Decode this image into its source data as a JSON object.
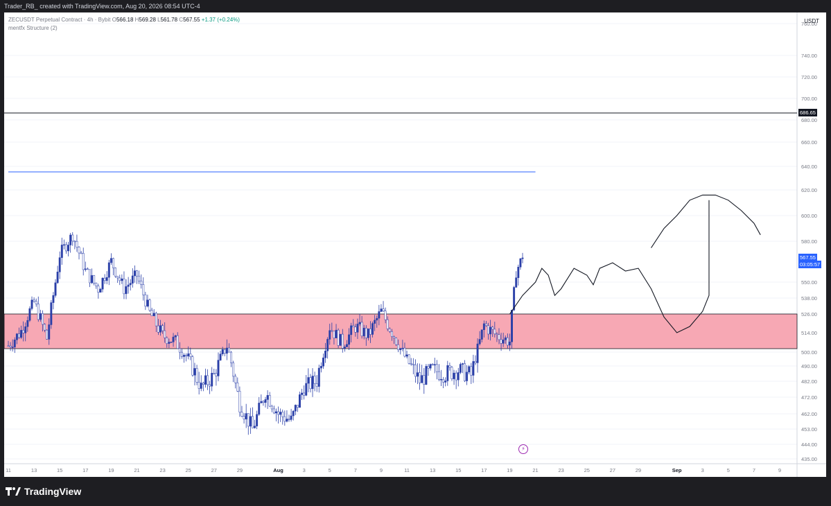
{
  "header": {
    "caption": "Trader_RB_ created with TradingView.com, Aug 20, 2026 08:54 UTC-4"
  },
  "legend": {
    "symbol": "ZECUSDT Perpetual Contract · 4h · Bybit",
    "o_label": "O",
    "o": "566.18",
    "h_label": "H",
    "h": "569.28",
    "l_label": "L",
    "l": "561.78",
    "c_label": "C",
    "c": "567.55",
    "change": "+1.37 (+0.24%)",
    "indicator": "mentfx Structure (2)"
  },
  "price_axis": {
    "unit": "USDT",
    "ticks": [
      "760.00",
      "740.00",
      "720.00",
      "700.00",
      "680.00",
      "660.00",
      "640.00",
      "620.00",
      "600.00",
      "580.00",
      "550.00",
      "538.00",
      "526.00",
      "514.00",
      "500.00",
      "490.00",
      "482.00",
      "472.00",
      "462.00",
      "453.00",
      "444.00",
      "435.00"
    ],
    "marker_line_label": "686.65",
    "last_price_label": "567.55",
    "countdown_label": "03:05:57"
  },
  "time_axis": {
    "ticks": [
      "11",
      "13",
      "15",
      "17",
      "19",
      "21",
      "23",
      "25",
      "27",
      "29",
      "Aug",
      "3",
      "5",
      "7",
      "9",
      "11",
      "13",
      "15",
      "17",
      "19",
      "21",
      "23",
      "25",
      "27",
      "29",
      "Sep",
      "3",
      "5",
      "7",
      "9"
    ]
  },
  "footer": {
    "brand": "TradingView"
  },
  "colors": {
    "bull": "#2a3fa8",
    "bear": "#ffffff",
    "bear_outline": "#2a3fa8",
    "zone_fill": "#f7a8b4",
    "blue_line": "#2962ff",
    "last_price_bg": "#2962ff",
    "marker_bg": "#131722"
  },
  "chart_data": {
    "type": "candlestick",
    "symbol": "ZECUSDT",
    "timeframe": "4h",
    "x_range": [
      "Jul 11",
      "Sep 9"
    ],
    "y_range": [
      435,
      770
    ],
    "horizontal_lines": [
      {
        "price": 686.65,
        "style": "solid",
        "color": "#131722"
      },
      {
        "price": 638,
        "style": "solid",
        "color": "#2962ff",
        "x_start": "Jul 11",
        "x_end": "Aug 21"
      }
    ],
    "zones": [
      {
        "price_top": 526,
        "price_bottom": 503,
        "x_start": "Jul 11",
        "x_end": "Sep 9"
      }
    ],
    "close_path": [
      [
        "Jul 11",
        505
      ],
      [
        "Jul 12",
        515
      ],
      [
        "Jul 13",
        535
      ],
      [
        "Jul 14",
        510
      ],
      [
        "Jul 15",
        570
      ],
      [
        "Jul 16",
        585
      ],
      [
        "Jul 17",
        558
      ],
      [
        "Jul 18",
        545
      ],
      [
        "Jul 19",
        565
      ],
      [
        "Jul 20",
        545
      ],
      [
        "Jul 21",
        555
      ],
      [
        "Jul 22",
        527
      ],
      [
        "Jul 23",
        512
      ],
      [
        "Jul 24",
        508
      ],
      [
        "Jul 25",
        495
      ],
      [
        "Jul 26",
        478
      ],
      [
        "Jul 27",
        485
      ],
      [
        "Jul 28",
        505
      ],
      [
        "Jul 29",
        468
      ],
      [
        "Jul 30",
        453
      ],
      [
        "Jul 31",
        475
      ],
      [
        "Aug 1",
        462
      ],
      [
        "Aug 2",
        458
      ],
      [
        "Aug 3",
        478
      ],
      [
        "Aug 4",
        482
      ],
      [
        "Aug 5",
        518
      ],
      [
        "Aug 6",
        506
      ],
      [
        "Aug 7",
        518
      ],
      [
        "Aug 8",
        512
      ],
      [
        "Aug 9",
        528
      ],
      [
        "Aug 10",
        512
      ],
      [
        "Aug 11",
        494
      ],
      [
        "Aug 12",
        482
      ],
      [
        "Aug 13",
        488
      ],
      [
        "Aug 14",
        486
      ],
      [
        "Aug 15",
        488
      ],
      [
        "Aug 16",
        485
      ],
      [
        "Aug 17",
        519
      ],
      [
        "Aug 18",
        512
      ],
      [
        "Aug 19",
        508
      ],
      [
        "Aug 19.5",
        558
      ],
      [
        "Aug 20",
        567.55
      ]
    ],
    "drawn_projection": "hand-drawn path rising from the zone toward about 600 then dipping back into the zone near Sep 1",
    "drawn_targets": [
      {
        "label": "",
        "path": "projected arc"
      }
    ]
  }
}
